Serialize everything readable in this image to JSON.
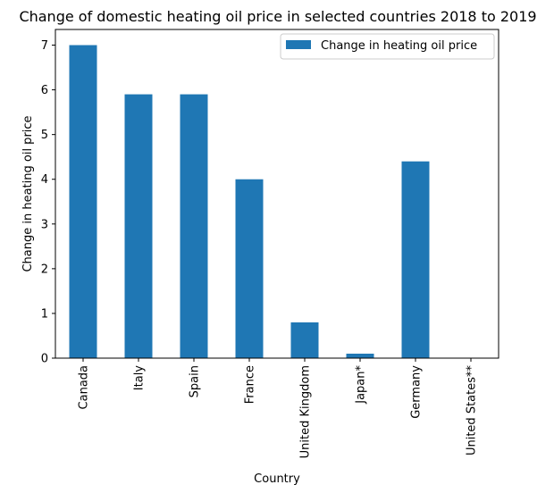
{
  "chart_data": {
    "type": "bar",
    "title": "Change of domestic heating oil price in selected countries 2018 to 2019",
    "xlabel": "Country",
    "ylabel": "Change in heating oil price",
    "categories": [
      "Canada",
      "Italy",
      "Spain",
      "France",
      "United Kingdom",
      "Japan*",
      "Germany",
      "United States**"
    ],
    "series": [
      {
        "name": "Change in heating oil price",
        "values": [
          7.0,
          5.9,
          5.9,
          4.0,
          0.8,
          0.1,
          4.4,
          0.0
        ],
        "color": "#1f77b4"
      }
    ],
    "ylim": [
      0,
      7.35
    ],
    "yticks": [
      0,
      1,
      2,
      3,
      4,
      5,
      6,
      7
    ],
    "grid": false,
    "legend": "top-right"
  }
}
